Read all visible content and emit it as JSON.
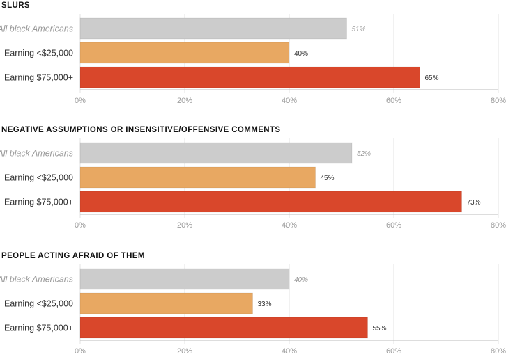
{
  "colors": {
    "all": "#cccccc",
    "low": "#e8a862",
    "high": "#d9472b",
    "grid": "#e3e3e3",
    "axis": "#bbbbbb"
  },
  "chart_data": [
    {
      "type": "bar",
      "orientation": "horizontal",
      "title": "SLURS",
      "categories": [
        "All black Americans",
        "Earning <$25,000",
        "Earning $75,000+"
      ],
      "values": [
        51,
        40,
        65
      ],
      "value_labels": [
        "51%",
        "40%",
        "65%"
      ],
      "xlim": [
        0,
        80
      ],
      "xticks": [
        "0%",
        "20%",
        "40%",
        "60%",
        "80%"
      ],
      "grid": true
    },
    {
      "type": "bar",
      "orientation": "horizontal",
      "title": "NEGATIVE ASSUMPTIONS OR INSENSITIVE/OFFENSIVE COMMENTS",
      "categories": [
        "All black Americans",
        "Earning <$25,000",
        "Earning $75,000+"
      ],
      "values": [
        52,
        45,
        73
      ],
      "value_labels": [
        "52%",
        "45%",
        "73%"
      ],
      "xlim": [
        0,
        80
      ],
      "xticks": [
        "0%",
        "20%",
        "40%",
        "60%",
        "80%"
      ],
      "grid": true
    },
    {
      "type": "bar",
      "orientation": "horizontal",
      "title": "PEOPLE ACTING AFRAID OF THEM",
      "categories": [
        "All black Americans",
        "Earning <$25,000",
        "Earning $75,000+"
      ],
      "values": [
        40,
        33,
        55
      ],
      "value_labels": [
        "40%",
        "33%",
        "55%"
      ],
      "xlim": [
        0,
        80
      ],
      "xticks": [
        "0%",
        "20%",
        "40%",
        "60%",
        "80%"
      ],
      "grid": true
    }
  ]
}
